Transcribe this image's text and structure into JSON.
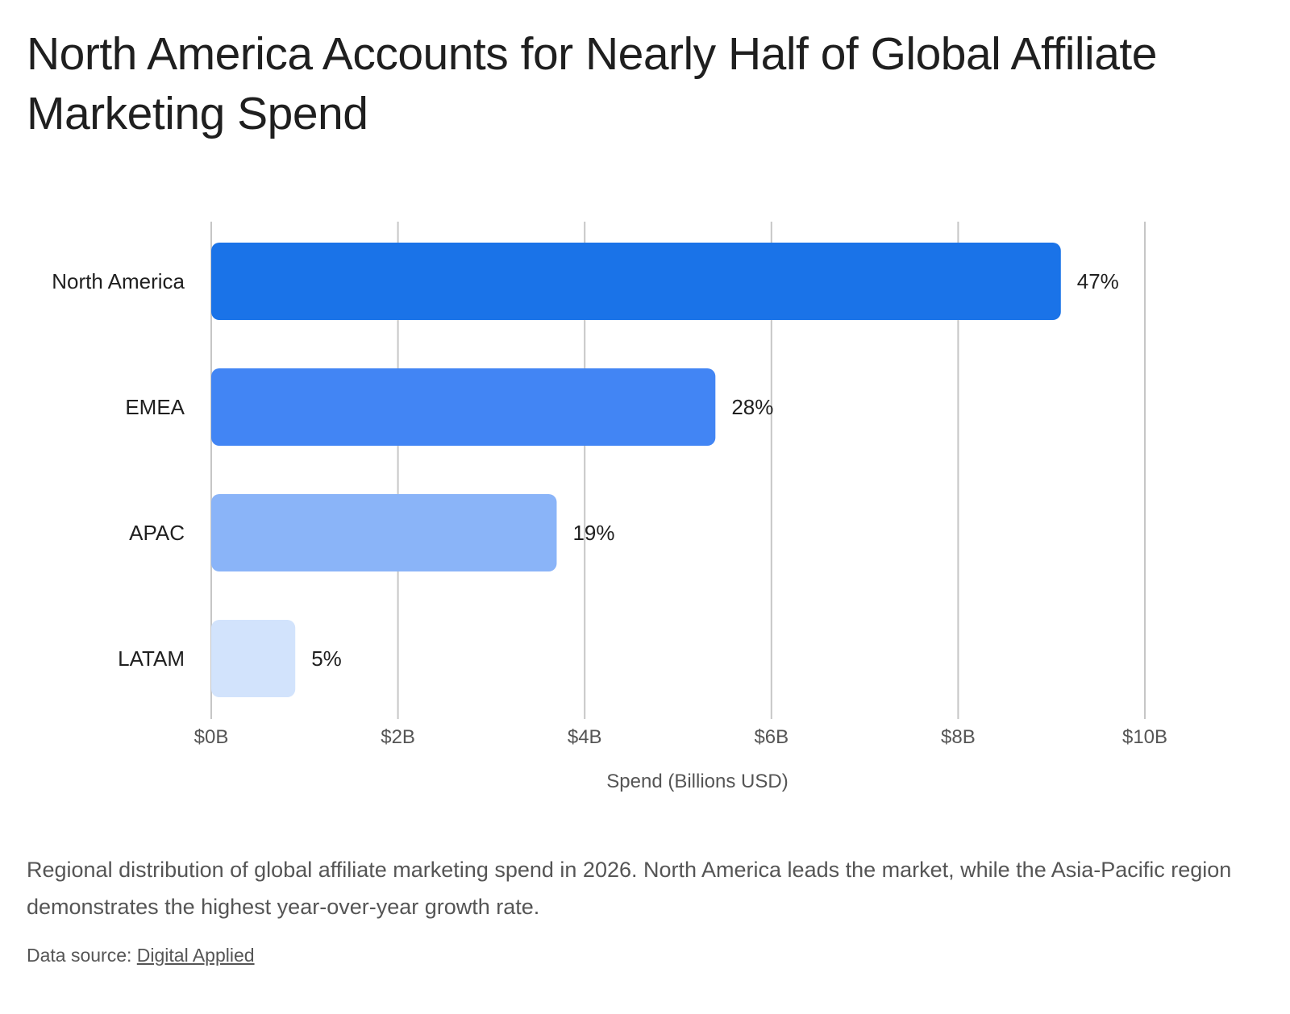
{
  "header": {
    "title": "North America Accounts for Nearly Half of Global Affiliate Marketing Spend"
  },
  "chart_data": {
    "type": "bar",
    "orientation": "horizontal",
    "categories": [
      "North America",
      "EMEA",
      "APAC",
      "LATAM"
    ],
    "values": [
      9.1,
      5.4,
      3.7,
      0.9
    ],
    "value_labels": [
      "47%",
      "28%",
      "19%",
      "5%"
    ],
    "colors": [
      "#1a73e8",
      "#4285f4",
      "#8ab4f8",
      "#d2e3fc"
    ],
    "xlabel": "Spend (Billions USD)",
    "xlim": [
      0,
      10
    ],
    "xticks": [
      0,
      2,
      4,
      6,
      8,
      10
    ],
    "xtick_labels": [
      "$0B",
      "$2B",
      "$4B",
      "$6B",
      "$8B",
      "$10B"
    ],
    "grid": true,
    "legend": "none"
  },
  "footer": {
    "caption": "Regional distribution of global affiliate marketing spend in 2026. North America leads the market, while the Asia-Pacific region demonstrates the highest year-over-year growth rate.",
    "source_prefix": "Data source: ",
    "source_link": "Digital Applied"
  }
}
